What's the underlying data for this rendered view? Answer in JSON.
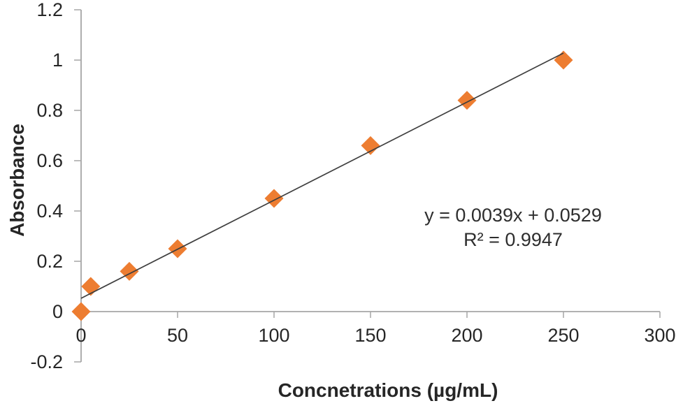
{
  "chart_data": {
    "type": "scatter",
    "title": "",
    "xlabel": "Concnetrations (µg/mL)",
    "ylabel": "Absorbance",
    "xlim": [
      0,
      300
    ],
    "ylim": [
      -0.2,
      1.2
    ],
    "x_ticks": [
      "0",
      "50",
      "100",
      "150",
      "200",
      "250",
      "300"
    ],
    "y_ticks": [
      "1.2",
      "1",
      "0.8",
      "0.6",
      "0.4",
      "0.2",
      "0",
      "-0.2"
    ],
    "grid": false,
    "legend": "none",
    "series": [
      {
        "name": "absorbance-vs-concentration",
        "marker": "diamond",
        "color": "#ED7D31",
        "points": [
          [
            0,
            0.0
          ],
          [
            5,
            0.1
          ],
          [
            25,
            0.16
          ],
          [
            50,
            0.25
          ],
          [
            100,
            0.45
          ],
          [
            150,
            0.66
          ],
          [
            200,
            0.84
          ],
          [
            250,
            1.0
          ]
        ]
      }
    ],
    "trendline": {
      "slope": 0.0039,
      "intercept": 0.0529,
      "r_squared": 0.9947,
      "x_range": [
        0,
        250
      ],
      "color": "#3f3f3f",
      "equation_label": "y = 0.0039x + 0.0529",
      "r_squared_label": "R² = 0.9947"
    },
    "colors": {
      "marker": "#ED7D31",
      "axis_line": "#A6A6A6",
      "text": "#262626",
      "trendline": "#3f3f3f",
      "background": "#ffffff"
    }
  }
}
